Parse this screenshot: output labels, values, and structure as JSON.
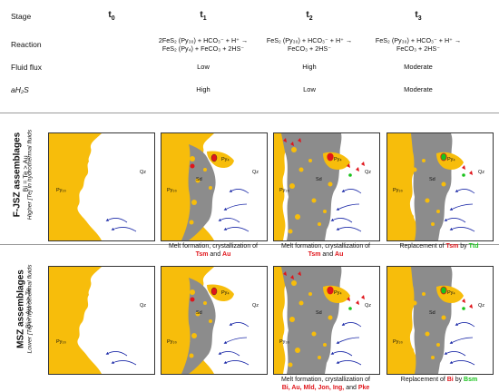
{
  "header": {
    "row_labels": {
      "stage": "Stage",
      "reaction": "Reaction",
      "fluid_flux": "Fluid flux",
      "ah2s": "aH₂S"
    },
    "stages": [
      "t",
      "t",
      "t",
      "t"
    ],
    "stage_subs": [
      "0",
      "1",
      "2",
      "3"
    ],
    "reactions": [
      "",
      "2FeS₂ (Py₃₀) + HCO₃⁻ + H⁺ →\nFeS₂ (Py₄) + FeCO₃ + 2HS⁻",
      "FeS₂ (Py₃₀) + HCO₃⁻ + H⁺ →\nFeCO₃ + 2HS⁻",
      "FeS₂ (Py₃₀) + HCO₃⁻ + H⁺ →\nFeCO₃ + 2HS⁻"
    ],
    "fluid_flux": [
      "",
      "Low",
      "High",
      "Moderate"
    ],
    "ah2s": [
      "",
      "High",
      "Low",
      "Moderate"
    ]
  },
  "rows": [
    {
      "title": "F-JSZ assemblages",
      "subtitle": "Bi = Te > Au",
      "note": "Higher [Te] in hydrothermal fluids",
      "captions": [
        {
          "line1": "",
          "line2": []
        },
        {
          "line1": "Melt formation, crystallization of",
          "line2": [
            {
              "t": "Tsm",
              "c": "red"
            },
            {
              "t": " and ",
              "c": ""
            },
            {
              "t": "Au",
              "c": "red"
            }
          ]
        },
        {
          "line1": "Melt formation, crystallization of",
          "line2": [
            {
              "t": "Tsm",
              "c": "red"
            },
            {
              "t": " and ",
              "c": ""
            },
            {
              "t": "Au",
              "c": "red"
            }
          ]
        },
        {
          "line1": "",
          "line2": [
            {
              "t": "Replacement of ",
              "c": ""
            },
            {
              "t": "Tsm",
              "c": "red"
            },
            {
              "t": " by ",
              "c": ""
            },
            {
              "t": "Ttd",
              "c": "green"
            }
          ]
        }
      ]
    },
    {
      "title": "MSZ assemblages",
      "subtitle": "Bi > Au >> Te",
      "note": "Lower [Te] in hydrothermal fluids",
      "captions": [
        {
          "line1": "",
          "line2": []
        },
        {
          "line1": "",
          "line2": []
        },
        {
          "line1": "Melt formation, crystallization of",
          "line2": [
            {
              "t": "Bi, Au, Mld, Jon, Ing,",
              "c": "red"
            },
            {
              "t": " and ",
              "c": ""
            },
            {
              "t": "Pke",
              "c": "red"
            }
          ]
        },
        {
          "line1": "",
          "line2": [
            {
              "t": "Replacement of ",
              "c": ""
            },
            {
              "t": "Bi",
              "c": "red"
            },
            {
              "t": " by ",
              "c": ""
            },
            {
              "t": "Bsm",
              "c": "green"
            }
          ]
        }
      ]
    }
  ],
  "panel_labels": {
    "py30": "Py₃₀",
    "qz": "Qz",
    "sd": "Sd",
    "py4": "Py₄"
  },
  "colors": {
    "pyrite": "#f7bd0b",
    "siderite": "#8c8c8c",
    "grain": "#e0151b",
    "fluid": "#1c2aa8",
    "replacement": "#19c21c"
  }
}
